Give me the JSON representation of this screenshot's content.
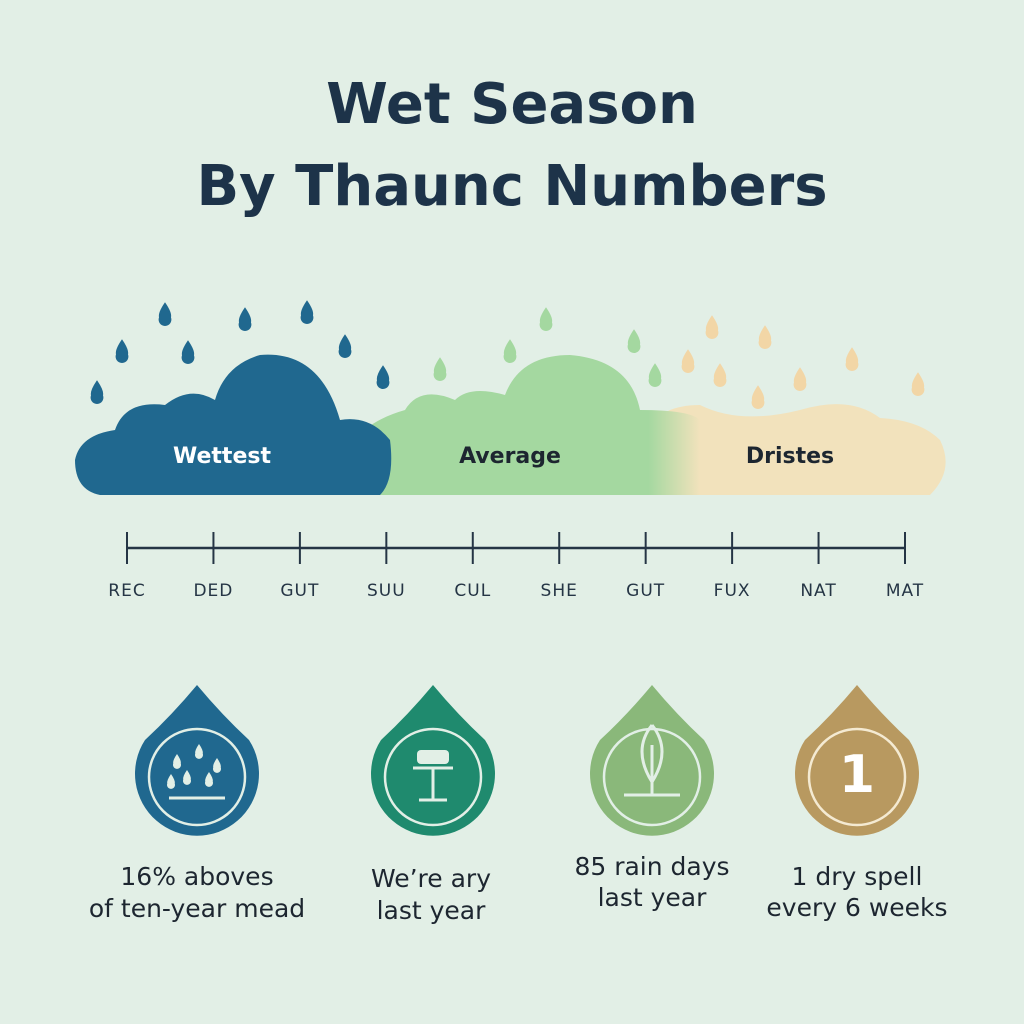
{
  "header": {
    "title_lines": [
      "Wet Season",
      "By Thaunc Numbers"
    ]
  },
  "clouds": {
    "labels": [
      "Wettest",
      "Average",
      "Dristes"
    ]
  },
  "timeline": {
    "labels": [
      "REC",
      "DED",
      "GUT",
      "SUU",
      "CUL",
      "SHE",
      "GUT",
      "FUX",
      "NAT",
      "MAT"
    ]
  },
  "stats": [
    {
      "lines": [
        "16% aboves",
        "of ten-year mead"
      ]
    },
    {
      "lines": [
        "We’re ary",
        "last year"
      ]
    },
    {
      "lines": [
        "85 rain days",
        "last year"
      ]
    },
    {
      "icon_text": "1",
      "lines": [
        "1 dry spell",
        "every 6 weeks"
      ]
    }
  ]
}
